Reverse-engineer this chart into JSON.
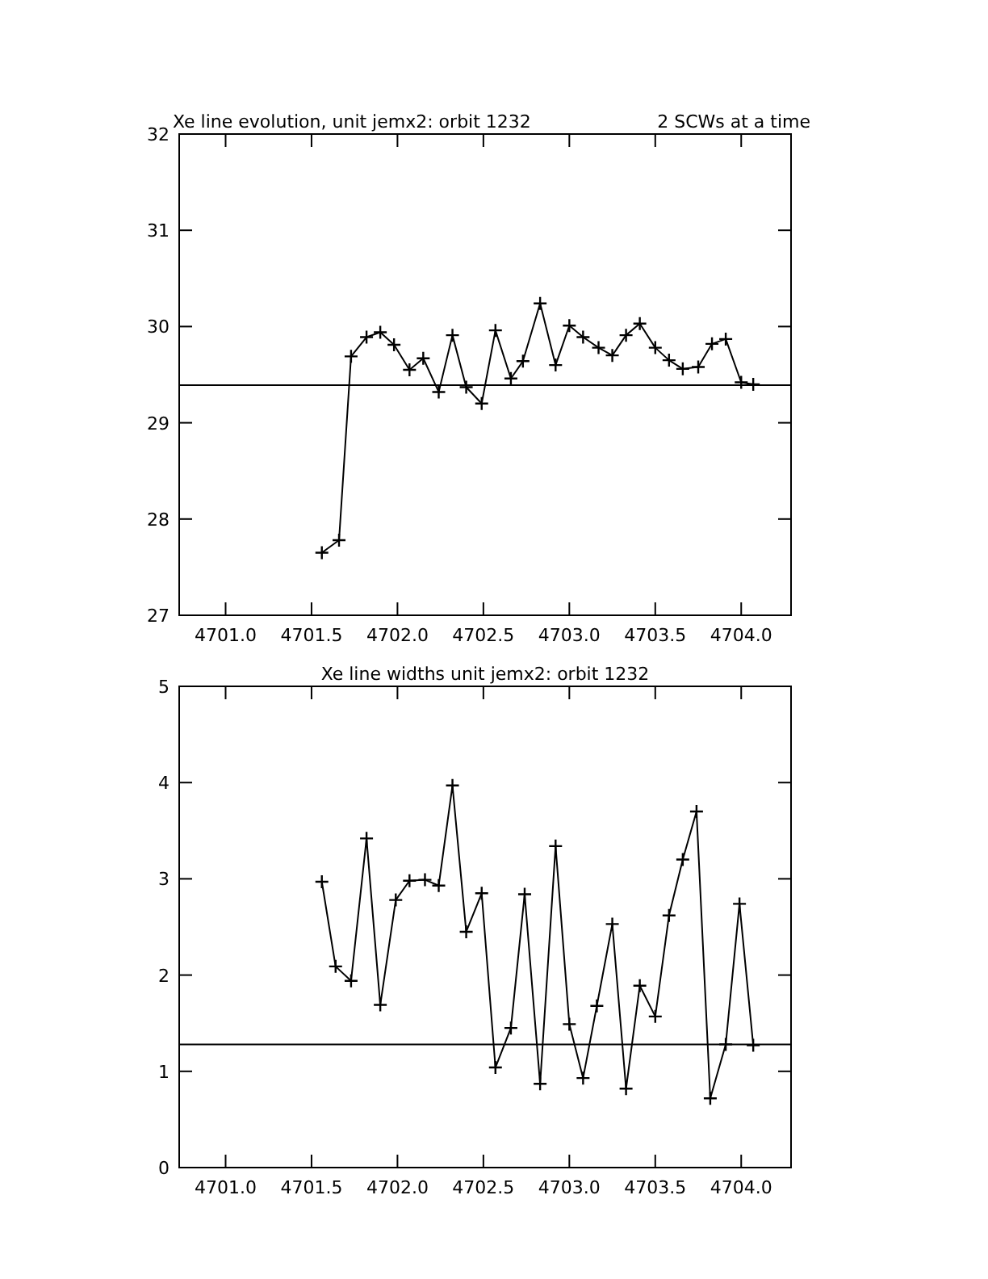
{
  "chart_data": [
    {
      "type": "line",
      "title": "Xe line evolution, unit jemx2: orbit 1232",
      "subtitle": "2 SCWs at a time",
      "marker": "cross",
      "line_style": "solid",
      "x": [
        4701.56,
        4701.66,
        4701.73,
        4701.82,
        4701.9,
        4701.98,
        4702.07,
        4702.15,
        4702.24,
        4702.32,
        4702.4,
        4702.49,
        4702.57,
        4702.66,
        4702.73,
        4702.83,
        4702.92,
        4703.0,
        4703.08,
        4703.17,
        4703.25,
        4703.33,
        4703.41,
        4703.5,
        4703.58,
        4703.66,
        4703.75,
        4703.83,
        4703.91,
        4704.0,
        4704.07
      ],
      "series": [
        {
          "color": "#000000",
          "values": [
            27.65,
            27.78,
            29.69,
            29.89,
            29.94,
            29.81,
            29.55,
            29.67,
            29.32,
            29.91,
            29.37,
            29.2,
            29.96,
            29.46,
            29.64,
            30.24,
            29.6,
            30.01,
            29.89,
            29.78,
            29.7,
            29.91,
            30.03,
            29.78,
            29.65,
            29.56,
            29.58,
            29.82,
            29.87,
            29.42,
            29.4
          ]
        }
      ],
      "ref_lines": [
        {
          "axis": "y",
          "value": 29.39,
          "color": "#000000"
        }
      ],
      "xlim": [
        4700.73,
        4704.29
      ],
      "ylim": [
        27,
        32
      ],
      "xticks": [
        {
          "value": 4701,
          "label": "4701.0"
        },
        {
          "value": 4701.5,
          "label": "4701.5"
        },
        {
          "value": 4702,
          "label": "4702.0"
        },
        {
          "value": 4702.5,
          "label": "4702.5"
        },
        {
          "value": 4703,
          "label": "4703.0"
        },
        {
          "value": 4703.5,
          "label": "4703.5"
        },
        {
          "value": 4704,
          "label": "4704.0"
        }
      ],
      "yticks": [
        27,
        28,
        29,
        30,
        31,
        32
      ]
    },
    {
      "type": "line",
      "title": "Xe line widths unit jemx2: orbit 1232",
      "marker": "cross",
      "line_style": "solid",
      "x": [
        4701.56,
        4701.64,
        4701.73,
        4701.82,
        4701.9,
        4701.99,
        4702.07,
        4702.16,
        4702.24,
        4702.32,
        4702.4,
        4702.49,
        4702.57,
        4702.66,
        4702.74,
        4702.83,
        4702.92,
        4703.0,
        4703.08,
        4703.16,
        4703.25,
        4703.33,
        4703.41,
        4703.5,
        4703.58,
        4703.66,
        4703.74,
        4703.82,
        4703.91,
        4703.99,
        4704.07
      ],
      "series": [
        {
          "color": "#000000",
          "values": [
            2.97,
            2.09,
            1.94,
            3.42,
            1.69,
            2.78,
            2.98,
            2.99,
            2.93,
            3.97,
            2.45,
            2.85,
            1.04,
            1.45,
            2.84,
            0.87,
            3.34,
            1.49,
            0.93,
            1.68,
            2.53,
            0.82,
            1.89,
            1.57,
            2.62,
            3.2,
            3.7,
            0.72,
            1.28,
            2.74,
            1.27
          ]
        }
      ],
      "ref_lines": [
        {
          "axis": "y",
          "value": 1.28,
          "color": "#000000"
        }
      ],
      "xlim": [
        4700.73,
        4704.29
      ],
      "ylim": [
        0,
        5
      ],
      "xticks": [
        {
          "value": 4701,
          "label": "4701.0"
        },
        {
          "value": 4701.5,
          "label": "4701.5"
        },
        {
          "value": 4702,
          "label": "4702.0"
        },
        {
          "value": 4702.5,
          "label": "4702.5"
        },
        {
          "value": 4703,
          "label": "4703.0"
        },
        {
          "value": 4703.5,
          "label": "4703.5"
        },
        {
          "value": 4704,
          "label": "4704.0"
        }
      ],
      "yticks": [
        0,
        1,
        2,
        3,
        4,
        5
      ]
    }
  ]
}
